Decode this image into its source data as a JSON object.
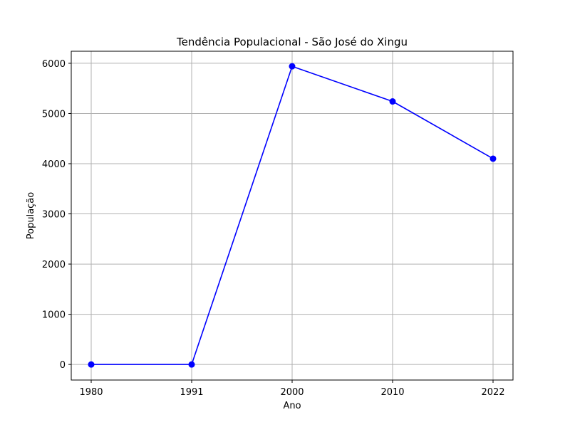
{
  "chart_data": {
    "type": "line",
    "title": "Tendência Populacional - São José do Xingu",
    "xlabel": "Ano",
    "ylabel": "População",
    "categories": [
      "1980",
      "1991",
      "2000",
      "2010",
      "2022"
    ],
    "series": [
      {
        "values": [
          0,
          0,
          5940,
          5240,
          4100
        ],
        "color": "#0000ff",
        "marker": "circle"
      }
    ],
    "ylim": [
      -310,
      6240
    ],
    "yticks": [
      0,
      1000,
      2000,
      3000,
      4000,
      5000,
      6000
    ],
    "grid": true,
    "grid_color": "#b0b0b0"
  }
}
